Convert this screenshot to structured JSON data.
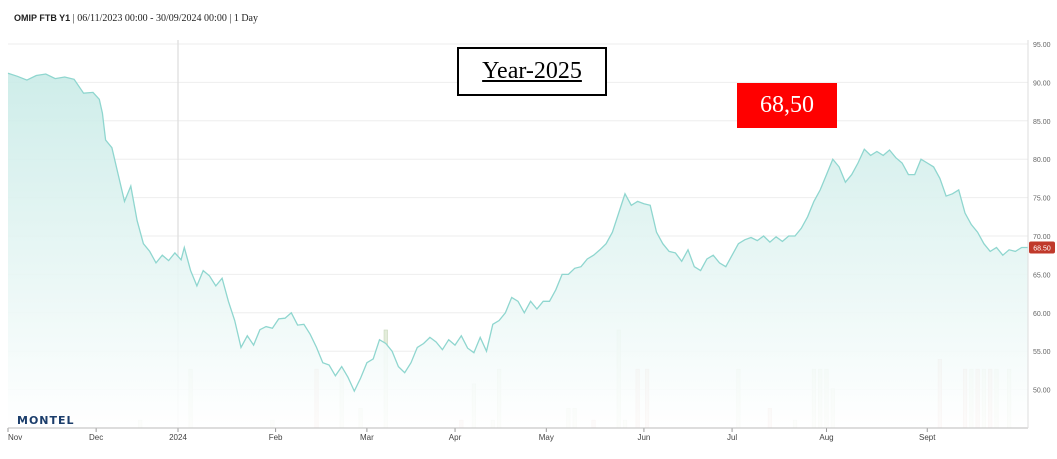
{
  "header": {
    "symbol": "OMIP FTB Y1",
    "range": "| 06/11/2023 00:00 - 30/09/2024 00:00 | 1 Day"
  },
  "annotation_title": "Year-2025",
  "price_callout": "68,50",
  "logo": "MONTEL",
  "colors": {
    "line": "#8fd6cf",
    "fill_top": "#c9ebe7",
    "up_bar": "#e3ecda",
    "down_bar": "#ebcfc9",
    "last_badge": "#c0392b"
  },
  "chart_data": {
    "type": "area",
    "title": "",
    "xlabel": "",
    "ylabel": "",
    "ylim": [
      45,
      95
    ],
    "yticks": [
      "95.00",
      "90.00",
      "85.00",
      "80.00",
      "75.00",
      "70.00",
      "65.00",
      "60.00",
      "55.00",
      "50.00"
    ],
    "xticks": [
      "Nov",
      "Dec",
      "2024",
      "Feb",
      "Mar",
      "Apr",
      "May",
      "Jun",
      "Jul",
      "Aug",
      "Sept"
    ],
    "grid": true,
    "last_value_label": "68.50",
    "series": [
      {
        "points": [
          [
            0,
            91.2
          ],
          [
            3,
            90.8
          ],
          [
            6,
            90.3
          ],
          [
            9,
            90.9
          ],
          [
            12,
            91.1
          ],
          [
            15,
            90.5
          ],
          [
            18,
            90.7
          ],
          [
            21,
            90.4
          ],
          [
            24,
            88.6
          ],
          [
            27,
            88.7
          ],
          [
            29,
            87.8
          ],
          [
            30,
            86.0
          ],
          [
            31,
            82.5
          ],
          [
            33,
            81.5
          ],
          [
            35,
            78.0
          ],
          [
            37,
            74.5
          ],
          [
            39,
            76.5
          ],
          [
            41,
            72.0
          ],
          [
            43,
            69.0
          ],
          [
            45,
            68.0
          ],
          [
            47,
            66.5
          ],
          [
            49,
            67.5
          ],
          [
            51,
            66.8
          ],
          [
            53,
            67.8
          ],
          [
            55,
            66.9
          ],
          [
            56,
            68.5
          ],
          [
            58,
            65.5
          ],
          [
            60,
            63.5
          ],
          [
            62,
            65.5
          ],
          [
            64,
            64.8
          ],
          [
            66,
            63.5
          ],
          [
            68,
            64.5
          ],
          [
            70,
            61.5
          ],
          [
            72,
            59.0
          ],
          [
            74,
            55.5
          ],
          [
            76,
            57.0
          ],
          [
            78,
            55.8
          ],
          [
            80,
            57.8
          ],
          [
            82,
            58.2
          ],
          [
            84,
            58.0
          ],
          [
            86,
            59.2
          ],
          [
            88,
            59.3
          ],
          [
            90,
            60.0
          ],
          [
            92,
            58.4
          ],
          [
            94,
            58.5
          ],
          [
            96,
            57.2
          ],
          [
            98,
            55.5
          ],
          [
            100,
            53.5
          ],
          [
            102,
            53.2
          ],
          [
            104,
            51.8
          ],
          [
            106,
            53.0
          ],
          [
            108,
            51.6
          ],
          [
            110,
            49.8
          ],
          [
            112,
            51.5
          ],
          [
            114,
            53.5
          ],
          [
            116,
            54.0
          ],
          [
            118,
            56.5
          ],
          [
            120,
            56.0
          ],
          [
            122,
            55.0
          ],
          [
            124,
            53.0
          ],
          [
            126,
            52.2
          ],
          [
            128,
            53.5
          ],
          [
            130,
            55.5
          ],
          [
            132,
            56.0
          ],
          [
            134,
            56.8
          ],
          [
            136,
            56.2
          ],
          [
            138,
            55.2
          ],
          [
            140,
            56.5
          ],
          [
            142,
            55.8
          ],
          [
            144,
            57.0
          ],
          [
            146,
            55.4
          ],
          [
            148,
            54.8
          ],
          [
            150,
            56.8
          ],
          [
            152,
            55.0
          ],
          [
            154,
            58.5
          ],
          [
            156,
            59.0
          ],
          [
            158,
            60.0
          ],
          [
            160,
            62.0
          ],
          [
            162,
            61.5
          ],
          [
            164,
            60.0
          ],
          [
            166,
            61.5
          ],
          [
            168,
            60.5
          ],
          [
            170,
            61.5
          ],
          [
            172,
            61.5
          ],
          [
            174,
            63.0
          ],
          [
            176,
            65.0
          ],
          [
            178,
            65.0
          ],
          [
            180,
            65.8
          ],
          [
            182,
            66.0
          ],
          [
            184,
            67.0
          ],
          [
            186,
            67.5
          ],
          [
            188,
            68.2
          ],
          [
            190,
            69.0
          ],
          [
            192,
            70.5
          ],
          [
            194,
            73.0
          ],
          [
            196,
            75.5
          ],
          [
            198,
            74.0
          ],
          [
            200,
            74.5
          ],
          [
            202,
            74.2
          ],
          [
            204,
            74.0
          ],
          [
            206,
            70.5
          ],
          [
            208,
            69.0
          ],
          [
            210,
            68.0
          ],
          [
            212,
            67.8
          ],
          [
            214,
            66.7
          ],
          [
            216,
            68.2
          ],
          [
            218,
            66.0
          ],
          [
            220,
            65.5
          ],
          [
            222,
            67.0
          ],
          [
            224,
            67.5
          ],
          [
            226,
            66.5
          ],
          [
            228,
            66.0
          ],
          [
            230,
            67.5
          ],
          [
            232,
            69.0
          ],
          [
            234,
            69.5
          ],
          [
            236,
            69.8
          ],
          [
            238,
            69.4
          ],
          [
            240,
            70.0
          ],
          [
            242,
            69.2
          ],
          [
            244,
            69.9
          ],
          [
            246,
            69.3
          ],
          [
            248,
            70.0
          ],
          [
            250,
            70.0
          ],
          [
            252,
            71.0
          ],
          [
            254,
            72.5
          ],
          [
            256,
            74.5
          ],
          [
            258,
            76.0
          ],
          [
            260,
            78.0
          ],
          [
            262,
            80.0
          ],
          [
            264,
            79.0
          ],
          [
            266,
            77.0
          ],
          [
            268,
            78.0
          ],
          [
            270,
            79.5
          ],
          [
            272,
            81.3
          ],
          [
            274,
            80.5
          ],
          [
            276,
            81.0
          ],
          [
            278,
            80.5
          ],
          [
            280,
            81.2
          ],
          [
            282,
            80.2
          ],
          [
            284,
            79.5
          ],
          [
            286,
            78.0
          ],
          [
            288,
            78.0
          ],
          [
            290,
            80.0
          ],
          [
            292,
            79.5
          ],
          [
            294,
            79.0
          ],
          [
            296,
            77.5
          ],
          [
            298,
            75.2
          ],
          [
            300,
            75.5
          ],
          [
            302,
            76.0
          ],
          [
            304,
            73.0
          ],
          [
            306,
            71.5
          ],
          [
            308,
            70.5
          ],
          [
            310,
            69.0
          ],
          [
            312,
            68.0
          ],
          [
            314,
            68.5
          ],
          [
            316,
            67.5
          ],
          [
            318,
            68.2
          ],
          [
            320,
            68.0
          ],
          [
            322,
            68.5
          ],
          [
            324,
            68.5
          ]
        ]
      }
    ],
    "volume": {
      "ylim": [
        0,
        100
      ],
      "up": [
        [
          42,
          8
        ],
        [
          58,
          60
        ],
        [
          84,
          8
        ],
        [
          106,
          60
        ],
        [
          112,
          20
        ],
        [
          120,
          100
        ],
        [
          148,
          45
        ],
        [
          154,
          8
        ],
        [
          156,
          60
        ],
        [
          178,
          20
        ],
        [
          180,
          20
        ],
        [
          194,
          100
        ],
        [
          196,
          8
        ],
        [
          232,
          60
        ],
        [
          250,
          8
        ],
        [
          256,
          60
        ],
        [
          258,
          60
        ],
        [
          260,
          60
        ],
        [
          262,
          40
        ],
        [
          306,
          60
        ],
        [
          310,
          60
        ],
        [
          314,
          60
        ],
        [
          318,
          60
        ]
      ],
      "down": [
        [
          98,
          60
        ],
        [
          144,
          8
        ],
        [
          200,
          60
        ],
        [
          203,
          60
        ],
        [
          186,
          8
        ],
        [
          242,
          20
        ],
        [
          296,
          70
        ],
        [
          304,
          60
        ],
        [
          308,
          60
        ],
        [
          312,
          60
        ]
      ]
    }
  }
}
